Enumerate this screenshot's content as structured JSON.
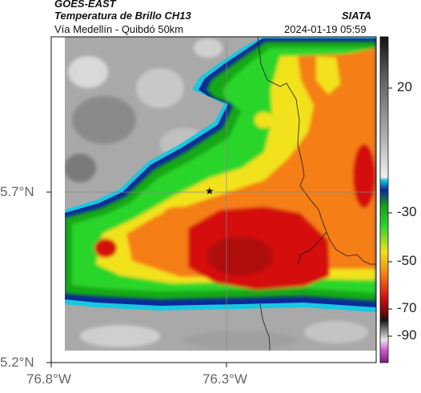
{
  "header": {
    "satellite": "GOES-EAST",
    "product": "Temperatura de Brillo CH13",
    "region": "Vía Medellín - Quibdó 50km",
    "source": "SIATA",
    "datetime": "2024-01-19 05:59"
  },
  "map": {
    "lat_ticks": [
      "5.7°N",
      "5.2°N"
    ],
    "lon_ticks": [
      "76.8°W",
      "76.3°W"
    ],
    "marker_symbol": "★"
  },
  "colorbar": {
    "labels": [
      "20",
      "-30",
      "-50",
      "-70",
      "-90"
    ]
  },
  "colors": {
    "cold_core": "#d51010",
    "warm_ground": "#a8a8a8",
    "edge_blue": "#0b2a9a",
    "green": "#2bd52b",
    "yellow": "#f2e21a",
    "orange": "#f57e16"
  }
}
